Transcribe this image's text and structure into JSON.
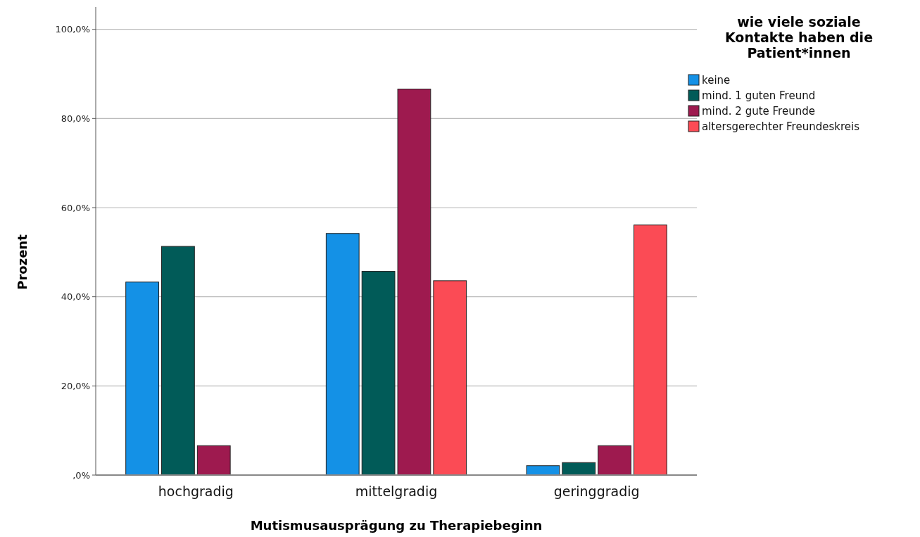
{
  "chart_data": {
    "type": "bar",
    "xlabel": "Mutismusausprägung zu Therapiebeginn",
    "ylabel": "Prozent",
    "legend_title": "wie viele soziale Kontakte haben die Patient*innen",
    "legend": "top right",
    "grid": "y",
    "categories": [
      "hochgradig",
      "mittelgradig",
      "geringgradig"
    ],
    "ylim": [
      0,
      105
    ],
    "yticks": [
      {
        "value": 0,
        "label": ",0%"
      },
      {
        "value": 20,
        "label": "20,0%"
      },
      {
        "value": 40,
        "label": "40,0%"
      },
      {
        "value": 60,
        "label": "60,0%"
      },
      {
        "value": 80,
        "label": "80,0%"
      },
      {
        "value": 100,
        "label": "100,0%"
      }
    ],
    "series": [
      {
        "name": "keine",
        "color": "#1491e6",
        "values": [
          43.3,
          54.2,
          2.1
        ]
      },
      {
        "name": "mind. 1 guten Freund",
        "color": "#015b58",
        "values": [
          51.3,
          45.7,
          2.8
        ]
      },
      {
        "name": "mind. 2 gute Freunde",
        "color": "#9e1a4f",
        "values": [
          6.6,
          86.6,
          6.6
        ]
      },
      {
        "name": "altersgerechter Freundeskreis",
        "color": "#fb4b55",
        "values": [
          0,
          43.6,
          56.1
        ]
      }
    ]
  }
}
